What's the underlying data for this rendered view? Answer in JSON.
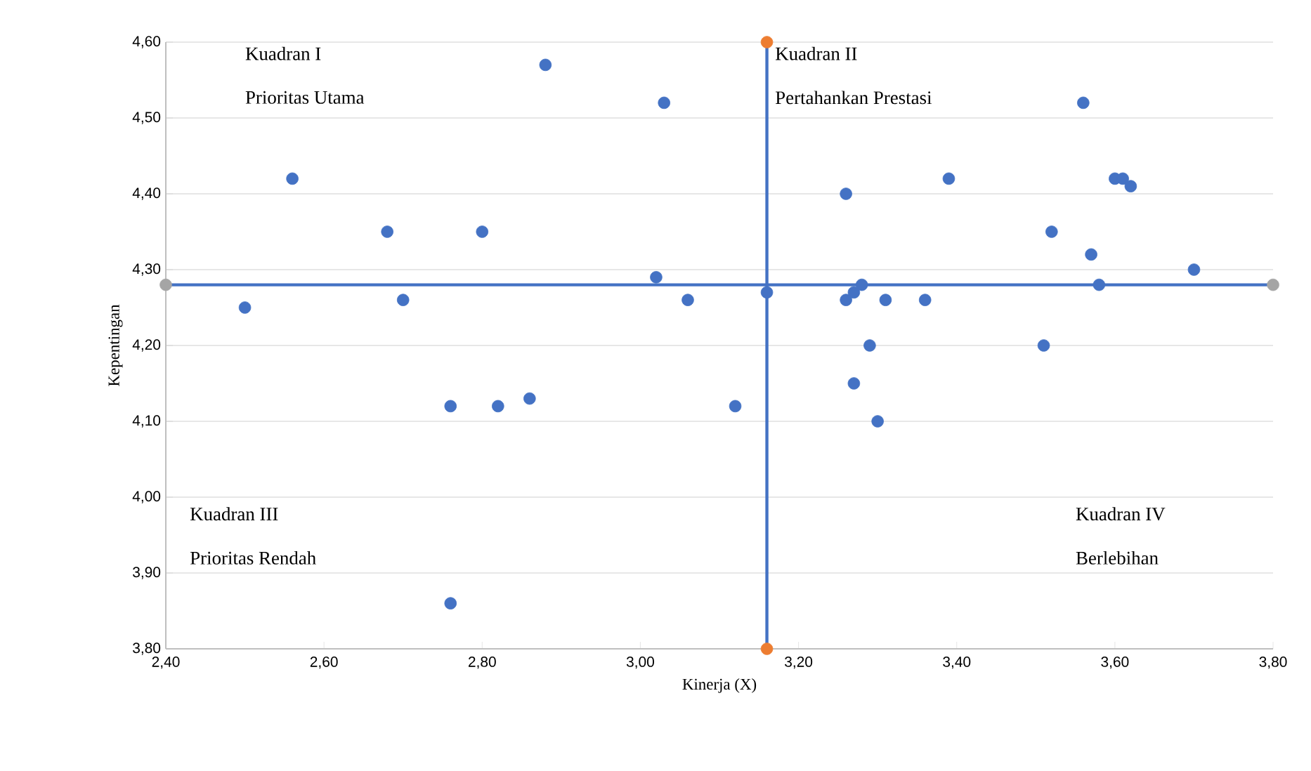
{
  "chart_data": {
    "type": "scatter",
    "xlabel": "Kinerja (X)",
    "ylabel": "Kepentingan",
    "xlim": [
      2.4,
      3.8
    ],
    "ylim": [
      3.8,
      4.6
    ],
    "xticks": [
      {
        "value": 2.4,
        "label": "2,40"
      },
      {
        "value": 2.6,
        "label": "2,60"
      },
      {
        "value": 2.8,
        "label": "2,80"
      },
      {
        "value": 3.0,
        "label": "3,00"
      },
      {
        "value": 3.2,
        "label": "3,20"
      },
      {
        "value": 3.4,
        "label": "3,40"
      },
      {
        "value": 3.6,
        "label": "3,60"
      },
      {
        "value": 3.8,
        "label": "3,80"
      }
    ],
    "yticks": [
      {
        "value": 3.8,
        "label": "3,80"
      },
      {
        "value": 3.9,
        "label": "3,90"
      },
      {
        "value": 4.0,
        "label": "4,00"
      },
      {
        "value": 4.1,
        "label": "4,10"
      },
      {
        "value": 4.2,
        "label": "4,20"
      },
      {
        "value": 4.3,
        "label": "4,30"
      },
      {
        "value": 4.4,
        "label": "4,40"
      },
      {
        "value": 4.5,
        "label": "4,50"
      },
      {
        "value": 4.6,
        "label": "4,60"
      }
    ],
    "grid": "y",
    "series": [
      {
        "color": "#4472c4",
        "x": [
          2.5,
          2.56,
          2.68,
          2.7,
          2.76,
          2.76,
          2.8,
          2.82,
          2.86,
          2.88,
          3.02,
          3.03,
          3.06,
          3.12,
          3.16,
          3.26,
          3.26,
          3.27,
          3.28,
          3.27,
          3.29,
          3.3,
          3.31,
          3.36,
          3.39,
          3.51,
          3.52,
          3.56,
          3.57,
          3.58,
          3.6,
          3.61,
          3.62,
          3.7
        ],
        "values": [
          4.25,
          4.42,
          4.35,
          4.26,
          4.12,
          3.86,
          4.35,
          4.12,
          4.13,
          4.57,
          4.29,
          4.52,
          4.26,
          4.12,
          4.27,
          4.4,
          4.26,
          4.27,
          4.28,
          4.15,
          4.2,
          4.1,
          4.26,
          4.26,
          4.42,
          4.2,
          4.35,
          4.52,
          4.32,
          4.28,
          4.42,
          4.42,
          4.41,
          4.3
        ]
      },
      {
        "color": "#a5a5a5",
        "x": [
          2.4,
          3.8
        ],
        "values": [
          4.28,
          4.28
        ]
      },
      {
        "color": "#ed7d31",
        "x": [
          3.16,
          3.16
        ],
        "values": [
          3.8,
          4.6
        ]
      }
    ],
    "ref_lines": [
      {
        "axis": "y",
        "value": 4.28,
        "color": "#4472c4"
      },
      {
        "axis": "x",
        "value": 3.16,
        "color": "#4472c4"
      }
    ],
    "annotations": [
      "Kuadran I",
      "Prioritas Utama",
      "Kuadran II",
      "Pertahankan Prestasi",
      "Kuadran III",
      "Prioritas Rendah",
      "Kuadran IV",
      "Berlebihan"
    ]
  }
}
